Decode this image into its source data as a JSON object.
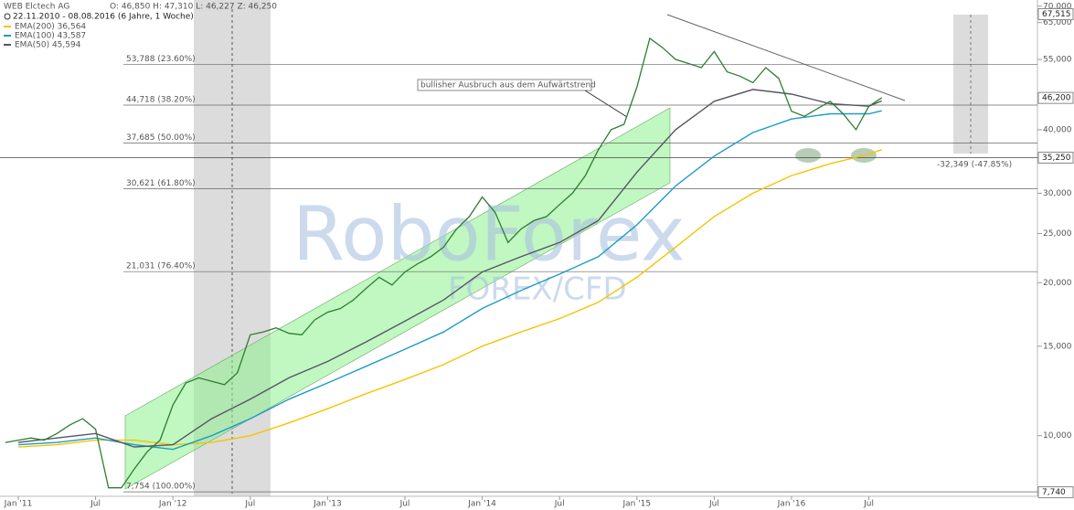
{
  "header": {
    "title": "WEB Elctech AG",
    "ohlc": "O: 46,850 H: 47,310 L: 46,227 Z: 46,250",
    "range": "22.11.2010 - 08.08.2016 (6 Jahre, 1 Woche)"
  },
  "chart_data": {
    "type": "line",
    "log_scale": true,
    "ylim": [
      7.6,
      72
    ],
    "yticks": [
      {
        "value": 70,
        "label": "70,000"
      },
      {
        "value": 65,
        "label": "65,000"
      },
      {
        "value": 55,
        "label": "55,000"
      },
      {
        "value": 40,
        "label": "40,000"
      },
      {
        "value": 30,
        "label": "30,000"
      },
      {
        "value": 25,
        "label": "25,000"
      },
      {
        "value": 20,
        "label": "20,000"
      },
      {
        "value": 15,
        "label": "15,000"
      },
      {
        "value": 10,
        "label": "10,000"
      }
    ],
    "xticks": [
      {
        "value": "2011-01",
        "label": "Jan '11"
      },
      {
        "value": "2011-07",
        "label": "Jul"
      },
      {
        "value": "2012-01",
        "label": "Jan '12"
      },
      {
        "value": "2012-07",
        "label": "Jul"
      },
      {
        "value": "2013-01",
        "label": "Jan '13"
      },
      {
        "value": "2013-07",
        "label": "Jul"
      },
      {
        "value": "2014-01",
        "label": "Jan '14"
      },
      {
        "value": "2014-07",
        "label": "Jul"
      },
      {
        "value": "2015-01",
        "label": "Jan '15"
      },
      {
        "value": "2015-07",
        "label": "Jul"
      },
      {
        "value": "2016-01",
        "label": "Jan '16"
      },
      {
        "value": "2016-07",
        "label": "Jul"
      }
    ],
    "price": {
      "color": "#2e7d32",
      "x": [
        "2010-12",
        "2011-01",
        "2011-02",
        "2011-03",
        "2011-04",
        "2011-05",
        "2011-06",
        "2011-07",
        "2011-08",
        "2011-09",
        "2011-10",
        "2011-11",
        "2011-12",
        "2012-01",
        "2012-02",
        "2012-03",
        "2012-04",
        "2012-05",
        "2012-06",
        "2012-07",
        "2012-08",
        "2012-09",
        "2012-10",
        "2012-11",
        "2012-12",
        "2013-01",
        "2013-02",
        "2013-03",
        "2013-04",
        "2013-05",
        "2013-06",
        "2013-07",
        "2013-08",
        "2013-09",
        "2013-10",
        "2013-11",
        "2013-12",
        "2014-01",
        "2014-02",
        "2014-03",
        "2014-04",
        "2014-05",
        "2014-06",
        "2014-07",
        "2014-08",
        "2014-09",
        "2014-10",
        "2014-11",
        "2014-12",
        "2015-01",
        "2015-02",
        "2015-03",
        "2015-04",
        "2015-05",
        "2015-06",
        "2015-07",
        "2015-08",
        "2015-09",
        "2015-10",
        "2015-11",
        "2015-12",
        "2016-01",
        "2016-02",
        "2016-03",
        "2016-04",
        "2016-05",
        "2016-06",
        "2016-07",
        "2016-08"
      ],
      "values": [
        9.7,
        9.8,
        9.9,
        9.8,
        10.1,
        10.5,
        10.8,
        10.3,
        7.9,
        7.9,
        8.6,
        9.3,
        9.8,
        11.5,
        12.7,
        13.0,
        12.8,
        12.6,
        13.3,
        15.8,
        16.0,
        16.3,
        15.9,
        15.8,
        16.9,
        17.5,
        17.8,
        18.5,
        19.5,
        20.5,
        19.8,
        21.0,
        21.8,
        22.5,
        23.5,
        25.5,
        27.0,
        29.5,
        27.5,
        24.0,
        25.5,
        26.5,
        27.0,
        28.5,
        30.0,
        32.5,
        36.5,
        40.0,
        41.0,
        48.5,
        60.5,
        58.0,
        55.0,
        54.0,
        53.0,
        57.0,
        52.0,
        51.0,
        49.5,
        53.0,
        50.5,
        43.5,
        42.5,
        44.0,
        45.5,
        43.0,
        40.0,
        44.5,
        46.25
      ]
    },
    "series": [
      {
        "name": "EMA(200) 36,564",
        "color": "#f5c400",
        "x": [
          "2011-01",
          "2011-04",
          "2011-07",
          "2011-10",
          "2012-01",
          "2012-04",
          "2012-07",
          "2012-10",
          "2013-01",
          "2013-04",
          "2013-07",
          "2013-10",
          "2014-01",
          "2014-04",
          "2014-07",
          "2014-10",
          "2015-01",
          "2015-04",
          "2015-07",
          "2015-10",
          "2016-01",
          "2016-04",
          "2016-07",
          "2016-08"
        ],
        "values": [
          9.5,
          9.6,
          9.8,
          9.8,
          9.6,
          9.7,
          10.0,
          10.6,
          11.3,
          12.1,
          12.9,
          13.8,
          15.0,
          16.0,
          17.0,
          18.3,
          20.5,
          23.5,
          27.0,
          30.0,
          32.5,
          34.3,
          35.8,
          36.56
        ]
      },
      {
        "name": "EMA(100) 43,587",
        "color": "#1e9bc4",
        "x": [
          "2011-01",
          "2011-04",
          "2011-07",
          "2011-10",
          "2012-01",
          "2012-04",
          "2012-07",
          "2012-10",
          "2013-01",
          "2013-04",
          "2013-07",
          "2013-10",
          "2014-01",
          "2014-04",
          "2014-07",
          "2014-10",
          "2015-01",
          "2015-04",
          "2015-07",
          "2015-10",
          "2016-01",
          "2016-04",
          "2016-07",
          "2016-08"
        ],
        "values": [
          9.6,
          9.7,
          9.9,
          9.6,
          9.4,
          10.0,
          10.8,
          11.8,
          12.7,
          13.7,
          14.8,
          16.0,
          17.8,
          19.3,
          20.8,
          22.5,
          26.0,
          31.0,
          35.5,
          39.5,
          42.0,
          43.0,
          43.0,
          43.59
        ]
      },
      {
        "name": "EMA(50) 45,594",
        "color": "#555566",
        "x": [
          "2011-01",
          "2011-04",
          "2011-07",
          "2011-10",
          "2012-01",
          "2012-04",
          "2012-07",
          "2012-10",
          "2013-01",
          "2013-04",
          "2013-07",
          "2013-10",
          "2014-01",
          "2014-04",
          "2014-07",
          "2014-10",
          "2015-01",
          "2015-04",
          "2015-07",
          "2015-10",
          "2016-01",
          "2016-04",
          "2016-07",
          "2016-08"
        ],
        "values": [
          9.7,
          9.9,
          10.1,
          9.5,
          9.6,
          10.8,
          11.8,
          13.0,
          14.0,
          15.3,
          16.8,
          18.5,
          21.0,
          22.5,
          24.0,
          26.5,
          33.0,
          40.0,
          45.5,
          48.0,
          47.0,
          45.0,
          44.5,
          45.59
        ]
      }
    ],
    "levels": [
      {
        "value": 53.788,
        "label": "53,788 (23.60%)"
      },
      {
        "value": 44.718,
        "label": "44,718 (38.20%)"
      },
      {
        "value": 37.685,
        "label": "37,685 (50.00%)"
      },
      {
        "value": 30.621,
        "label": "30,621 (61.80%)"
      },
      {
        "value": 21.031,
        "label": "21,031 (76.40%)"
      },
      {
        "value": 7.754,
        "label": "7,754 (100.00%)"
      }
    ],
    "markers": [
      {
        "value": 67.515,
        "label": "67,515"
      },
      {
        "value": 46.2,
        "label": "46,200"
      },
      {
        "value": 35.25,
        "label": "35,250"
      },
      {
        "value": 7.74,
        "label": "7,740"
      }
    ],
    "annotations": [
      "bullisher Ausbruch aus dem Aufwärtstrend",
      "-32,349 (-47.85%)"
    ],
    "watermark": [
      "RoboForex",
      "FOREX/CFD"
    ]
  }
}
